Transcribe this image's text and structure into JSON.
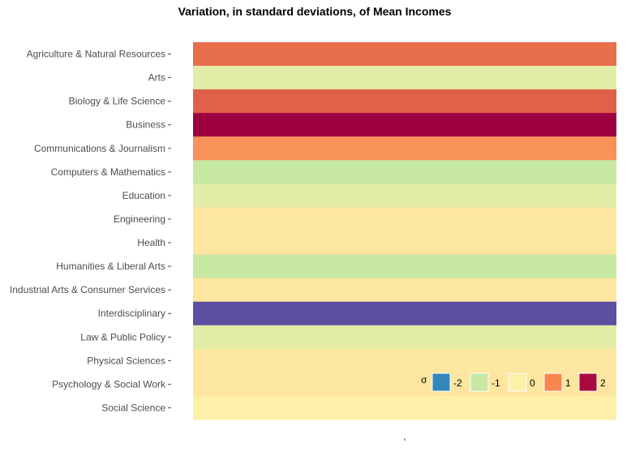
{
  "chart_data": {
    "type": "heatmap",
    "title": "Variation, in standard deviations, of Mean Incomes",
    "xlabel": "",
    "ylabel": "",
    "categories": [
      "Agriculture & Natural Resources",
      "Arts",
      "Biology & Life Science",
      "Business",
      "Communications & Journalism",
      "Computers & Mathematics",
      "Education",
      "Engineering",
      "Health",
      "Humanities & Liberal Arts",
      "Industrial Arts & Consumer Services",
      "Interdisciplinary",
      "Law & Public Policy",
      "Physical Sciences",
      "Psychology & Social Work",
      "Social Science"
    ],
    "values": [
      1.2,
      -0.5,
      1.3,
      2.4,
      0.9,
      -1.0,
      -0.5,
      0.1,
      0.1,
      -1.0,
      0.1,
      -2.6,
      -0.5,
      0.1,
      0.1,
      0.0
    ],
    "legend": {
      "title": "σ",
      "position": "bottom-right",
      "entries": [
        {
          "label": "-2",
          "color": "#3288bd"
        },
        {
          "label": "-1",
          "color": "#c7e8a3"
        },
        {
          "label": "0",
          "color": "#fdf0a8"
        },
        {
          "label": "1",
          "color": "#f8874f"
        },
        {
          "label": "2",
          "color": "#a8093f"
        }
      ]
    },
    "colors": {
      "low_extreme": "#5e4fa2",
      "minus2": "#3288bd",
      "minus1": "#c7e8a3",
      "zero": "#fdf0a8",
      "plus1": "#f8874f",
      "plus2": "#a8093f",
      "high_extreme": "#9e0142"
    },
    "grid": false
  }
}
